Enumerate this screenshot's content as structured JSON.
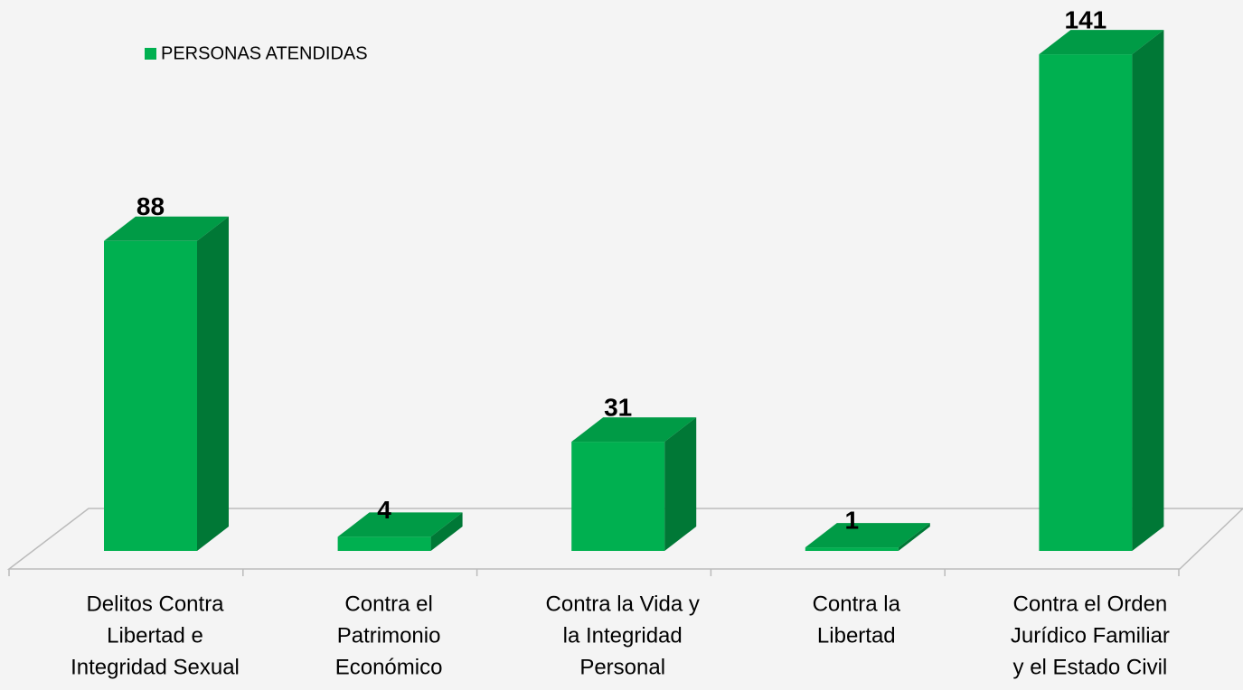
{
  "chart_data": {
    "type": "bar3d",
    "categories": [
      [
        "Delitos  Contra",
        "Libertad e",
        "Integridad Sexual"
      ],
      [
        "Contra el",
        "Patrimonio",
        "Económico"
      ],
      [
        "Contra la Vida y",
        "la Integridad",
        "Personal"
      ],
      [
        "Contra la",
        "Libertad"
      ],
      [
        "Contra el Orden",
        "Jurídico Familiar",
        "y el Estado Civil"
      ]
    ],
    "series": [
      {
        "name": "PERSONAS ATENDIDAS",
        "color": "#00b050",
        "values": [
          88,
          4,
          31,
          1,
          141
        ]
      }
    ],
    "ylim": [
      0,
      150
    ],
    "legend": "top-left"
  }
}
